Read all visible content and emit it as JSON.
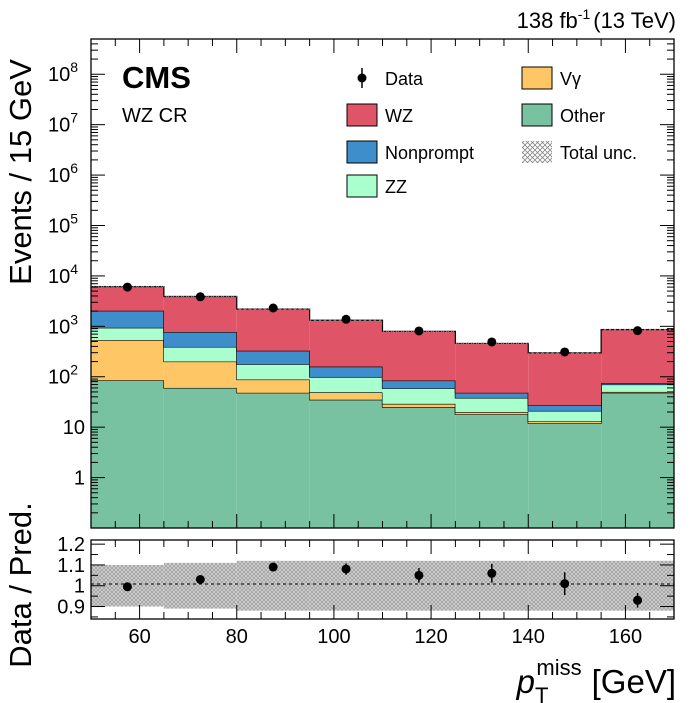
{
  "chart_data": {
    "type": "bar",
    "stacked": true,
    "title": "",
    "lumi_label": "138 fb",
    "lumi_sup": "-1",
    "energy_label": "(13 TeV)",
    "experiment_label": "CMS",
    "region_label": "WZ CR",
    "xlabel_main": "p",
    "xlabel_sub": "T",
    "xlabel_sup": "miss",
    "xlabel_unit": "[GeV]",
    "ylabel": "Events / 15 GeV",
    "ratio_ylabel": "Data / Pred.",
    "xlim": [
      50,
      170
    ],
    "ylim": [
      0.1,
      500000000
    ],
    "ylog": true,
    "ratio_ylim": [
      0.84,
      1.22
    ],
    "bin_edges": [
      50,
      65,
      80,
      95,
      110,
      125,
      140,
      155,
      170
    ],
    "x_ticks": [
      60,
      80,
      100,
      120,
      140,
      160
    ],
    "x_tick_labels": [
      "60",
      "80",
      "100",
      "120",
      "140",
      "160"
    ],
    "y_tick_labels": [
      {
        "label": "1",
        "value": 1
      },
      {
        "label": "10",
        "value": 10
      },
      {
        "label": "10",
        "sup": "2",
        "value": 100
      },
      {
        "label": "10",
        "sup": "3",
        "value": 1000
      },
      {
        "label": "10",
        "sup": "4",
        "value": 10000
      },
      {
        "label": "10",
        "sup": "5",
        "value": 100000
      },
      {
        "label": "10",
        "sup": "6",
        "value": 1000000
      },
      {
        "label": "10",
        "sup": "7",
        "value": 10000000
      },
      {
        "label": "10",
        "sup": "8",
        "value": 100000000
      }
    ],
    "ratio_ticks": [
      {
        "label": "0.9",
        "value": 0.9
      },
      {
        "label": "1",
        "value": 1.0
      },
      {
        "label": "1.1",
        "value": 1.1
      },
      {
        "label": "1.2",
        "value": 1.2
      }
    ],
    "series": [
      {
        "name": "Other",
        "color": "#78c2a2",
        "values": [
          85,
          60,
          48,
          35,
          25,
          18,
          12,
          48
        ]
      },
      {
        "name": "Vγ",
        "color": "#ffc666",
        "values": [
          450,
          140,
          40,
          14,
          4,
          2,
          1,
          2
        ]
      },
      {
        "name": "ZZ",
        "color": "#aaffcf",
        "values": [
          400,
          190,
          90,
          50,
          30,
          18,
          8,
          20
        ]
      },
      {
        "name": "Nonprompt",
        "color": "#3e8ecb",
        "values": [
          1100,
          380,
          150,
          60,
          25,
          10,
          6,
          5
        ]
      },
      {
        "name": "WZ",
        "color": "#e05468",
        "values": [
          4100,
          3130,
          1870,
          1160,
          710,
          410,
          270,
          785
        ]
      }
    ],
    "data": {
      "name": "Data",
      "x": [
        57.5,
        72.5,
        87.5,
        102.5,
        117.5,
        132.5,
        147.5,
        162.5
      ],
      "y": [
        6000,
        3850,
        2310,
        1380,
        810,
        490,
        310,
        820
      ]
    },
    "ratio": {
      "values": [
        0.995,
        1.03,
        1.09,
        1.08,
        1.05,
        1.06,
        1.01,
        0.93
      ],
      "errors": [
        0.013,
        0.017,
        0.02,
        0.027,
        0.035,
        0.045,
        0.055,
        0.035
      ],
      "unc_band": [
        0.1,
        0.11,
        0.12,
        0.12,
        0.12,
        0.12,
        0.12,
        0.12
      ]
    },
    "legend": [
      {
        "label": "Data",
        "type": "marker"
      },
      {
        "label": "Vγ",
        "type": "fill",
        "color": "#ffc666"
      },
      {
        "label": "WZ",
        "type": "fill",
        "color": "#e05468"
      },
      {
        "label": "Other",
        "type": "fill",
        "color": "#78c2a2"
      },
      {
        "label": "Nonprompt",
        "type": "fill",
        "color": "#3e8ecb"
      },
      {
        "label": "Total unc.",
        "type": "hatch"
      },
      {
        "label": "ZZ",
        "type": "fill",
        "color": "#aaffcf"
      }
    ]
  }
}
